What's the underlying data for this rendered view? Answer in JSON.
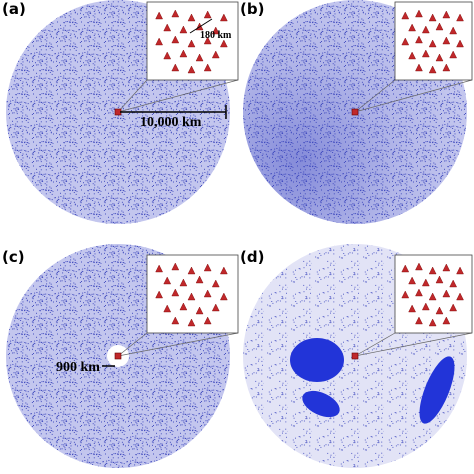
{
  "panels": [
    {
      "label": "(a)",
      "inset_scale": "180 km",
      "radius_label": "10,000 km"
    },
    {
      "label": "(b)"
    },
    {
      "label": "(c)",
      "hole_label": "900 km"
    },
    {
      "label": "(d)"
    }
  ]
}
